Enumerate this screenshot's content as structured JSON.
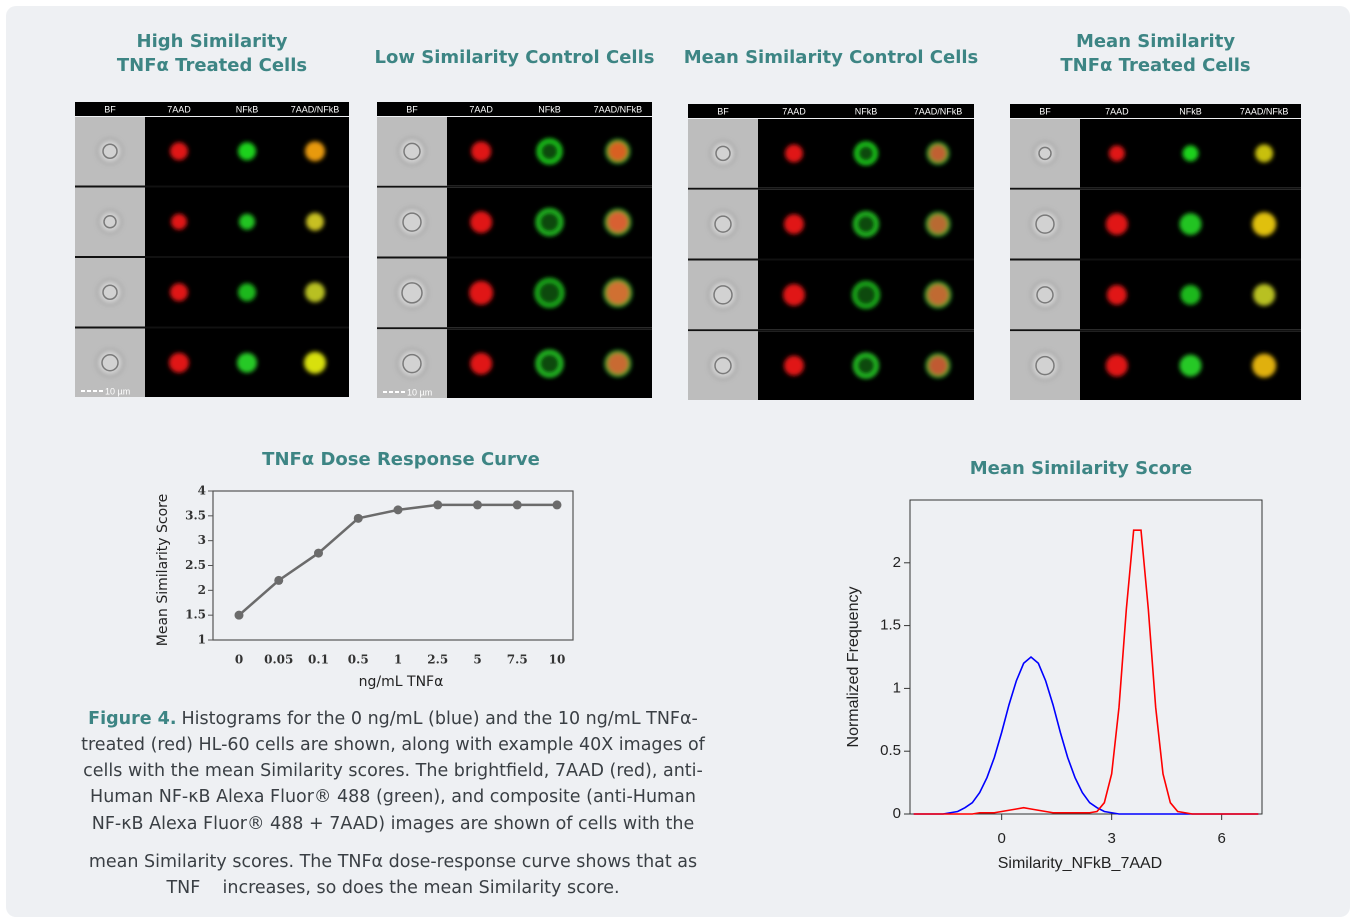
{
  "panels": [
    {
      "title": [
        "High Similarity",
        "TNFα Treated Cells"
      ],
      "columns": [
        "BF",
        "7AAD",
        "NFkB",
        "7AAD/NFkB"
      ],
      "scale": "10 µm"
    },
    {
      "title": [
        "Low Similarity Control Cells"
      ],
      "columns": [
        "BF",
        "7AAD",
        "NFkB",
        "7AAD/NFkB"
      ],
      "scale": "10 µm"
    },
    {
      "title": [
        "Mean Similarity Control Cells"
      ],
      "columns": [
        "BF",
        "7AAD",
        "NFkB",
        "7AAD/NFkB"
      ]
    },
    {
      "title": [
        "Mean Similarity",
        "TNFα Treated Cells"
      ],
      "columns": [
        "BF",
        "7AAD",
        "NFkB",
        "7AAD/NFkB"
      ]
    }
  ],
  "chart_data": [
    {
      "type": "line",
      "title": "TNFα Dose Response Curve",
      "x_label": "ng/mL TNFα",
      "y_label": "Mean Similarity Score",
      "categories": [
        "0",
        "0.05",
        "0.1",
        "0.5",
        "1",
        "2.5",
        "5",
        "7.5",
        "10"
      ],
      "values": [
        1.5,
        2.2,
        2.75,
        3.45,
        3.62,
        3.72,
        3.72,
        3.72,
        3.72
      ],
      "color": "#6b6b6b",
      "ylim": [
        1,
        4
      ],
      "yticks": [
        1,
        1.5,
        2,
        2.5,
        3,
        3.5,
        4
      ]
    },
    {
      "type": "histogram-line",
      "title": "Mean Similarity Score",
      "x_label": "Similarity_NFkB_7AAD",
      "y_label": "Normalized Frequency",
      "x": [
        -2.4,
        -2.2,
        -2,
        -1.8,
        -1.6,
        -1.4,
        -1.2,
        -1,
        -0.8,
        -0.6,
        -0.4,
        -0.2,
        0,
        0.2,
        0.4,
        0.6,
        0.8,
        1,
        1.2,
        1.4,
        1.6,
        1.8,
        2,
        2.2,
        2.4,
        2.6,
        2.8,
        3,
        3.2,
        3.4,
        3.6,
        3.8,
        4,
        4.2,
        4.4,
        4.6,
        4.8,
        5,
        5.2,
        5.4,
        5.6,
        5.8,
        6,
        6.2,
        6.4,
        6.6,
        6.8,
        7
      ],
      "series": [
        {
          "color": "#0000ff",
          "values": [
            0,
            0,
            0,
            0,
            0,
            0.01,
            0.02,
            0.05,
            0.09,
            0.17,
            0.29,
            0.45,
            0.65,
            0.87,
            1.06,
            1.2,
            1.25,
            1.2,
            1.06,
            0.87,
            0.65,
            0.45,
            0.29,
            0.17,
            0.09,
            0.05,
            0.02,
            0.01,
            0,
            0,
            0,
            0,
            0,
            0,
            0,
            0,
            0,
            0,
            0,
            0,
            0,
            0,
            0,
            0,
            0,
            0,
            0,
            0
          ]
        },
        {
          "color": "#ff0000",
          "values": [
            0,
            0,
            0,
            0,
            0,
            0,
            0,
            0,
            0,
            0.01,
            0.01,
            0.01,
            0.02,
            0.03,
            0.04,
            0.05,
            0.04,
            0.03,
            0.02,
            0.01,
            0.01,
            0.01,
            0.01,
            0.01,
            0.01,
            0.02,
            0.09,
            0.32,
            0.85,
            1.63,
            2.26,
            2.26,
            1.63,
            0.85,
            0.32,
            0.09,
            0.02,
            0.01,
            0,
            0,
            0,
            0,
            0,
            0,
            0,
            0,
            0,
            0
          ]
        }
      ],
      "xlim": [
        -2.5,
        7.1
      ],
      "xticks": [
        0,
        3,
        6
      ],
      "ylim": [
        0,
        2.5
      ],
      "yticks": [
        0,
        0.5,
        1,
        1.5,
        2
      ]
    }
  ],
  "caption": {
    "label": "Figure 4.",
    "lines": [
      "Histograms for the 0 ng/mL (blue) and the 10 ng/mL TNFα-",
      "treated (red) HL-60 cells are shown, along with example 40X images of",
      "cells with the mean Similarity scores. The brightfield, 7AAD (red), anti-",
      "Human NF-κB Alexa Fluor® 488 (green), and composite (anti-Human",
      "NF-κB Alexa Fluor® 488 + 7AAD) images are shown of cells with the",
      "mean Similarity scores. The TNFα dose-response curve shows that as",
      "TNF    increases, so does the mean Similarity score."
    ]
  }
}
